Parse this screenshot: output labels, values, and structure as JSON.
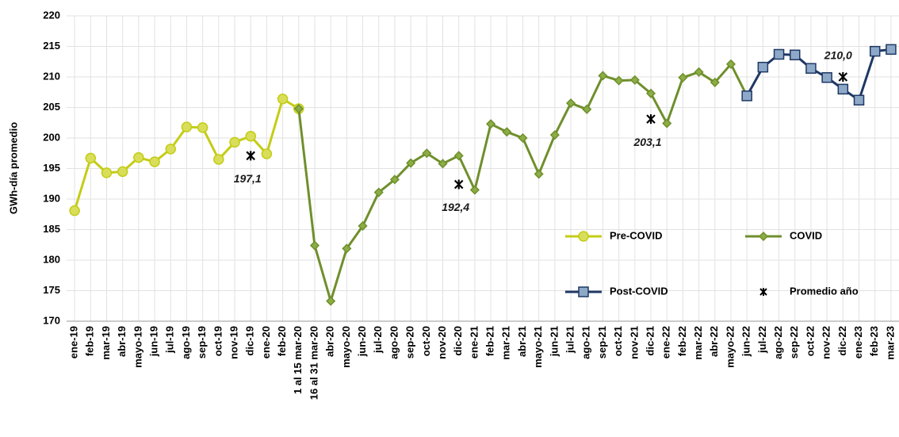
{
  "chart_data": {
    "type": "line",
    "y_label": "GWh-día promedio",
    "categories": [
      "ene-19",
      "feb-19",
      "mar-19",
      "abr-19",
      "mayo-19",
      "jun-19",
      "jul-19",
      "ago-19",
      "sep-19",
      "oct-19",
      "nov-19",
      "dic-19",
      "ene-20",
      "feb-20",
      "1 al 15 mar-20",
      "16 al 31 mar-20",
      "abr-20",
      "mayo-20",
      "jun-20",
      "jul-20",
      "ago-20",
      "sep-20",
      "oct-20",
      "nov-20",
      "dic-20",
      "ene-21",
      "feb-21",
      "mar-21",
      "abr-21",
      "mayo-21",
      "jun-21",
      "jul-21",
      "ago-21",
      "sep-21",
      "oct-21",
      "nov-21",
      "dic-21",
      "ene-22",
      "feb-22",
      "mar-22",
      "abr-22",
      "mayo-22",
      "jun-22",
      "jul-22",
      "ago-22",
      "sep-22",
      "oct-22",
      "nov-22",
      "dic-22",
      "ene-23",
      "feb-23",
      "mar-23"
    ],
    "series": [
      {
        "name": "Pre-COVID",
        "color": "#c4cc16",
        "marker": "circle",
        "marker_fill": "#d9de5a",
        "values": [
          188.1,
          196.7,
          194.3,
          194.5,
          196.8,
          196.1,
          198.2,
          201.8,
          201.7,
          196.5,
          199.3,
          200.3,
          197.4,
          206.4,
          204.8,
          null,
          null,
          null,
          null,
          null,
          null,
          null,
          null,
          null,
          null,
          null,
          null,
          null,
          null,
          null,
          null,
          null,
          null,
          null,
          null,
          null,
          null,
          null,
          null,
          null,
          null,
          null,
          null,
          null,
          null,
          null,
          null,
          null,
          null,
          null,
          null,
          null
        ]
      },
      {
        "name": "COVID",
        "color": "#6f8f2c",
        "marker": "diamond",
        "marker_fill": "#8cad45",
        "values": [
          null,
          null,
          null,
          null,
          null,
          null,
          null,
          null,
          null,
          null,
          null,
          null,
          null,
          null,
          204.8,
          182.4,
          173.3,
          181.9,
          185.6,
          191.1,
          193.2,
          195.9,
          197.5,
          195.8,
          197.1,
          191.5,
          202.3,
          201.0,
          200.0,
          194.1,
          200.5,
          205.7,
          204.7,
          210.2,
          209.4,
          209.5,
          207.3,
          202.4,
          209.9,
          210.8,
          209.1,
          212.1,
          206.9,
          null,
          null,
          null,
          null,
          null,
          null,
          null,
          null,
          null
        ]
      },
      {
        "name": "Post-COVID",
        "color": "#1f3864",
        "marker": "square",
        "marker_fill": "#8ea9c8",
        "values": [
          null,
          null,
          null,
          null,
          null,
          null,
          null,
          null,
          null,
          null,
          null,
          null,
          null,
          null,
          null,
          null,
          null,
          null,
          null,
          null,
          null,
          null,
          null,
          null,
          null,
          null,
          null,
          null,
          null,
          null,
          null,
          null,
          null,
          null,
          null,
          null,
          null,
          null,
          null,
          null,
          null,
          null,
          206.9,
          211.6,
          213.7,
          213.6,
          211.4,
          209.9,
          208.0,
          206.2,
          214.2,
          214.5
        ]
      },
      {
        "name": "Promedio año",
        "color": "#000000",
        "marker": "star",
        "values": [
          null,
          null,
          null,
          null,
          null,
          null,
          null,
          null,
          null,
          null,
          null,
          197.1,
          null,
          null,
          null,
          null,
          null,
          null,
          null,
          null,
          null,
          null,
          null,
          null,
          192.4,
          null,
          null,
          null,
          null,
          null,
          null,
          null,
          null,
          null,
          null,
          null,
          203.1,
          null,
          null,
          null,
          null,
          null,
          null,
          null,
          null,
          null,
          null,
          null,
          210.0,
          null,
          null,
          null
        ],
        "value_labels": [
          null,
          null,
          null,
          null,
          null,
          null,
          null,
          null,
          null,
          null,
          null,
          "197,1",
          null,
          null,
          null,
          null,
          null,
          null,
          null,
          null,
          null,
          null,
          null,
          null,
          "192,4",
          null,
          null,
          null,
          null,
          null,
          null,
          null,
          null,
          null,
          null,
          null,
          "203,1",
          null,
          null,
          null,
          null,
          null,
          null,
          null,
          null,
          null,
          null,
          null,
          "210,0",
          null,
          null,
          null
        ]
      }
    ],
    "ylim": [
      170,
      220
    ],
    "yticks": [
      170,
      175,
      180,
      185,
      190,
      195,
      200,
      205,
      210,
      215,
      220
    ],
    "grid": true
  }
}
